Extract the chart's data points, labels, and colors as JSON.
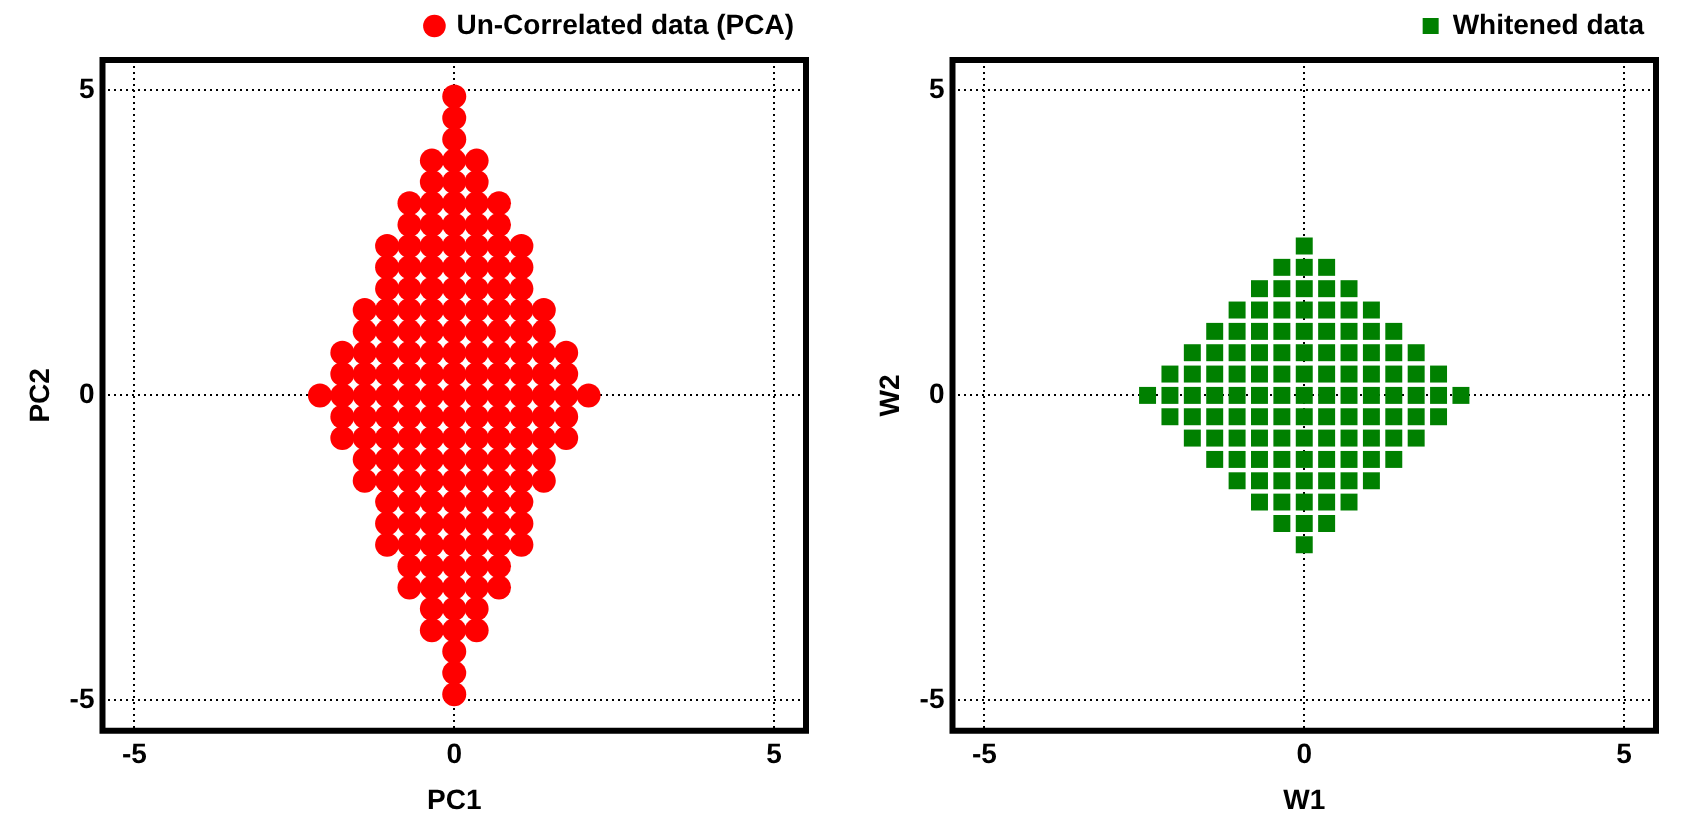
{
  "chart_data": [
    {
      "type": "scatter",
      "xlabel": "PC1",
      "ylabel": "PC2",
      "xlim": [
        -5.5,
        5.5
      ],
      "ylim": [
        -5.5,
        5.5
      ],
      "xticks": [
        -5,
        0,
        5
      ],
      "yticks": [
        -5,
        0,
        5
      ],
      "grid": true,
      "legend": "top right",
      "marker": "circle",
      "series": [
        {
          "name": "Un-Correlated data (PCA)",
          "color": "#ff0000",
          "x": [
            0,
            0,
            0,
            -0.35,
            0,
            0.35,
            -0.35,
            0,
            0.35,
            -0.7,
            -0.35,
            0,
            0.35,
            0.7,
            -0.7,
            -0.35,
            0,
            0.35,
            0.7,
            -1.05,
            -0.7,
            -0.35,
            0,
            0.35,
            0.7,
            1.05,
            -1.05,
            -0.7,
            -0.35,
            0,
            0.35,
            0.7,
            1.05,
            -1.05,
            -0.7,
            -0.35,
            0,
            0.35,
            0.7,
            1.05,
            -1.4,
            -1.05,
            -0.7,
            -0.35,
            0,
            0.35,
            0.7,
            1.05,
            1.4,
            -1.4,
            -1.05,
            -0.7,
            -0.35,
            0,
            0.35,
            0.7,
            1.05,
            1.4,
            -1.75,
            -1.4,
            -1.05,
            -0.7,
            -0.35,
            0,
            0.35,
            0.7,
            1.05,
            1.4,
            1.75,
            -1.75,
            -1.4,
            -1.05,
            -0.7,
            -0.35,
            0,
            0.35,
            0.7,
            1.05,
            1.4,
            1.75,
            -2.1,
            -1.75,
            -1.4,
            -1.05,
            -0.7,
            -0.35,
            0,
            0.35,
            0.7,
            1.05,
            1.4,
            1.75,
            2.1,
            -1.75,
            -1.4,
            -1.05,
            -0.7,
            -0.35,
            0,
            0.35,
            0.7,
            1.05,
            1.4,
            1.75,
            -1.75,
            -1.4,
            -1.05,
            -0.7,
            -0.35,
            0,
            0.35,
            0.7,
            1.05,
            1.4,
            1.75,
            -1.4,
            -1.05,
            -0.7,
            -0.35,
            0,
            0.35,
            0.7,
            1.05,
            1.4,
            -1.4,
            -1.05,
            -0.7,
            -0.35,
            0,
            0.35,
            0.7,
            1.05,
            1.4,
            -1.05,
            -0.7,
            -0.35,
            0,
            0.35,
            0.7,
            1.05,
            -1.05,
            -0.7,
            -0.35,
            0,
            0.35,
            0.7,
            1.05,
            -1.05,
            -0.7,
            -0.35,
            0,
            0.35,
            0.7,
            1.05,
            -0.7,
            -0.35,
            0,
            0.35,
            0.7,
            -0.7,
            -0.35,
            0,
            0.35,
            0.7,
            -0.35,
            0,
            0.35,
            -0.35,
            0,
            0.35,
            0,
            0,
            0
          ],
          "values": [
            4.9,
            4.55,
            4.2,
            3.85,
            3.85,
            3.85,
            3.5,
            3.5,
            3.5,
            3.15,
            3.15,
            3.15,
            3.15,
            3.15,
            2.8,
            2.8,
            2.8,
            2.8,
            2.8,
            2.45,
            2.45,
            2.45,
            2.45,
            2.45,
            2.45,
            2.45,
            2.1,
            2.1,
            2.1,
            2.1,
            2.1,
            2.1,
            2.1,
            1.75,
            1.75,
            1.75,
            1.75,
            1.75,
            1.75,
            1.75,
            1.4,
            1.4,
            1.4,
            1.4,
            1.4,
            1.4,
            1.4,
            1.4,
            1.4,
            1.05,
            1.05,
            1.05,
            1.05,
            1.05,
            1.05,
            1.05,
            1.05,
            1.05,
            0.7,
            0.7,
            0.7,
            0.7,
            0.7,
            0.7,
            0.7,
            0.7,
            0.7,
            0.7,
            0.7,
            0.35,
            0.35,
            0.35,
            0.35,
            0.35,
            0.35,
            0.35,
            0.35,
            0.35,
            0.35,
            0.35,
            0,
            0,
            0,
            0,
            0,
            0,
            0,
            0,
            0,
            0,
            0,
            0,
            0,
            -0.35,
            -0.35,
            -0.35,
            -0.35,
            -0.35,
            -0.35,
            -0.35,
            -0.35,
            -0.35,
            -0.35,
            -0.35,
            -0.7,
            -0.7,
            -0.7,
            -0.7,
            -0.7,
            -0.7,
            -0.7,
            -0.7,
            -0.7,
            -0.7,
            -0.7,
            -1.05,
            -1.05,
            -1.05,
            -1.05,
            -1.05,
            -1.05,
            -1.05,
            -1.05,
            -1.05,
            -1.4,
            -1.4,
            -1.4,
            -1.4,
            -1.4,
            -1.4,
            -1.4,
            -1.4,
            -1.4,
            -1.75,
            -1.75,
            -1.75,
            -1.75,
            -1.75,
            -1.75,
            -1.75,
            -2.1,
            -2.1,
            -2.1,
            -2.1,
            -2.1,
            -2.1,
            -2.1,
            -2.45,
            -2.45,
            -2.45,
            -2.45,
            -2.45,
            -2.45,
            -2.45,
            -2.8,
            -2.8,
            -2.8,
            -2.8,
            -2.8,
            -3.15,
            -3.15,
            -3.15,
            -3.15,
            -3.15,
            -3.5,
            -3.5,
            -3.5,
            -3.85,
            -3.85,
            -3.85,
            -4.2,
            -4.55,
            -4.9
          ]
        }
      ]
    },
    {
      "type": "scatter",
      "xlabel": "W1",
      "ylabel": "W2",
      "xlim": [
        -5.5,
        5.5
      ],
      "ylim": [
        -5.5,
        5.5
      ],
      "xticks": [
        -5,
        0,
        5
      ],
      "yticks": [
        -5,
        0,
        5
      ],
      "grid": true,
      "legend": "top right",
      "marker": "square",
      "series": [
        {
          "name": "Whitened data",
          "color": "#008000",
          "x": [
            0,
            -0.35,
            0,
            0.35,
            -0.7,
            -0.35,
            0,
            0.35,
            0.7,
            -1.05,
            -0.7,
            -0.35,
            0,
            0.35,
            0.7,
            1.05,
            -1.4,
            -1.05,
            -0.7,
            -0.35,
            0,
            0.35,
            0.7,
            1.05,
            1.4,
            -1.75,
            -1.4,
            -1.05,
            -0.7,
            -0.35,
            0,
            0.35,
            0.7,
            1.05,
            1.4,
            1.75,
            -2.1,
            -1.75,
            -1.4,
            -1.05,
            -0.7,
            -0.35,
            0,
            0.35,
            0.7,
            1.05,
            1.4,
            1.75,
            2.1,
            -2.45,
            -2.1,
            -1.75,
            -1.4,
            -1.05,
            -0.7,
            -0.35,
            0,
            0.35,
            0.7,
            1.05,
            1.4,
            1.75,
            2.1,
            2.45,
            -2.1,
            -1.75,
            -1.4,
            -1.05,
            -0.7,
            -0.35,
            0,
            0.35,
            0.7,
            1.05,
            1.4,
            1.75,
            2.1,
            -1.75,
            -1.4,
            -1.05,
            -0.7,
            -0.35,
            0,
            0.35,
            0.7,
            1.05,
            1.4,
            1.75,
            -1.4,
            -1.05,
            -0.7,
            -0.35,
            0,
            0.35,
            0.7,
            1.05,
            1.4,
            -1.05,
            -0.7,
            -0.35,
            0,
            0.35,
            0.7,
            1.05,
            -0.7,
            -0.35,
            0,
            0.35,
            0.7,
            -0.35,
            0,
            0.35,
            0
          ],
          "values": [
            2.45,
            2.1,
            2.1,
            2.1,
            1.75,
            1.75,
            1.75,
            1.75,
            1.75,
            1.4,
            1.4,
            1.4,
            1.4,
            1.4,
            1.4,
            1.4,
            1.05,
            1.05,
            1.05,
            1.05,
            1.05,
            1.05,
            1.05,
            1.05,
            1.05,
            0.7,
            0.7,
            0.7,
            0.7,
            0.7,
            0.7,
            0.7,
            0.7,
            0.7,
            0.7,
            0.7,
            0.35,
            0.35,
            0.35,
            0.35,
            0.35,
            0.35,
            0.35,
            0.35,
            0.35,
            0.35,
            0.35,
            0.35,
            0.35,
            0,
            0,
            0,
            0,
            0,
            0,
            0,
            0,
            0,
            0,
            0,
            0,
            0,
            0,
            0,
            -0.35,
            -0.35,
            -0.35,
            -0.35,
            -0.35,
            -0.35,
            -0.35,
            -0.35,
            -0.35,
            -0.35,
            -0.35,
            -0.35,
            -0.35,
            -0.7,
            -0.7,
            -0.7,
            -0.7,
            -0.7,
            -0.7,
            -0.7,
            -0.7,
            -0.7,
            -0.7,
            -0.7,
            -1.05,
            -1.05,
            -1.05,
            -1.05,
            -1.05,
            -1.05,
            -1.05,
            -1.05,
            -1.05,
            -1.4,
            -1.4,
            -1.4,
            -1.4,
            -1.4,
            -1.4,
            -1.4,
            -1.75,
            -1.75,
            -1.75,
            -1.75,
            -1.75,
            -2.1,
            -2.1,
            -2.1,
            -2.45
          ]
        }
      ]
    }
  ]
}
